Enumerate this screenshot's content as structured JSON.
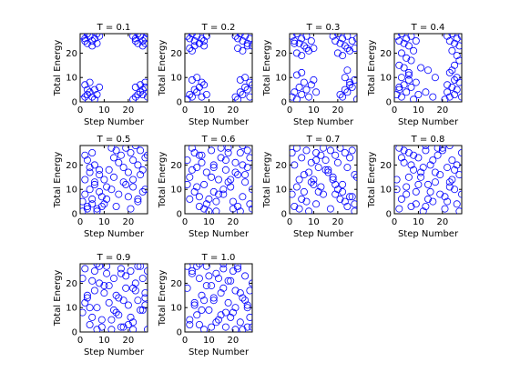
{
  "chart_data": [
    {
      "type": "scatter",
      "title": "T = 0.1",
      "xlabel": "Step Number",
      "ylabel": "Total Energy",
      "xlim": [
        0,
        28
      ],
      "ylim": [
        0,
        28
      ],
      "xticks": [
        "0",
        "10",
        "20"
      ],
      "yticks": [
        "0",
        "10",
        "20"
      ],
      "grid": false,
      "marker": "o",
      "x": [
        1,
        2,
        3,
        4,
        5,
        6,
        7,
        8,
        3,
        5,
        2,
        7,
        22,
        23,
        24,
        25,
        26,
        27,
        28,
        24,
        26,
        23,
        27,
        1,
        2,
        3,
        4,
        5,
        6,
        7,
        8,
        2,
        4,
        6,
        3,
        22,
        23,
        24,
        25,
        26,
        27,
        28,
        23,
        25,
        27,
        26
      ],
      "y": [
        27,
        26,
        28,
        27,
        25,
        26,
        28,
        27,
        24,
        23,
        25,
        24,
        27,
        26,
        28,
        27,
        25,
        26,
        28,
        24,
        23,
        25,
        24,
        1,
        2,
        3,
        4,
        2,
        5,
        3,
        6,
        7,
        8,
        1,
        5,
        1,
        2,
        3,
        4,
        5,
        6,
        2,
        6,
        7,
        8,
        3
      ]
    },
    {
      "type": "scatter",
      "title": "T = 0.2",
      "xlabel": "Step Number",
      "ylabel": "Total Energy",
      "xlim": [
        0,
        28
      ],
      "ylim": [
        0,
        28
      ],
      "xticks": [
        "0",
        "10",
        "20"
      ],
      "yticks": [
        "0",
        "10",
        "20"
      ],
      "grid": false,
      "marker": "o",
      "x": [
        1,
        2,
        3,
        4,
        5,
        6,
        7,
        8,
        9,
        2,
        4,
        6,
        8,
        3,
        21,
        22,
        23,
        24,
        25,
        26,
        27,
        28,
        22,
        24,
        26,
        1,
        2,
        3,
        4,
        5,
        6,
        7,
        8,
        9,
        3,
        5,
        7,
        21,
        22,
        23,
        24,
        25,
        26,
        27,
        28,
        23,
        25,
        27
      ],
      "y": [
        27,
        26,
        28,
        25,
        27,
        24,
        26,
        23,
        27,
        22,
        23,
        24,
        25,
        21,
        27,
        26,
        28,
        25,
        27,
        24,
        26,
        23,
        22,
        21,
        23,
        1,
        3,
        2,
        5,
        4,
        6,
        8,
        7,
        3,
        9,
        10,
        2,
        2,
        1,
        4,
        3,
        6,
        5,
        8,
        7,
        9,
        10,
        2
      ]
    },
    {
      "type": "scatter",
      "title": "T = 0.3",
      "xlabel": "Step Number",
      "ylabel": "Total Energy",
      "xlim": [
        0,
        28
      ],
      "ylim": [
        0,
        28
      ],
      "xticks": [
        "0",
        "10",
        "20"
      ],
      "yticks": [
        "0",
        "10",
        "20"
      ],
      "grid": false,
      "marker": "o",
      "x": [
        1,
        2,
        3,
        4,
        5,
        6,
        7,
        8,
        9,
        10,
        3,
        5,
        7,
        2,
        18,
        19,
        20,
        21,
        22,
        23,
        24,
        25,
        26,
        27,
        28,
        20,
        22,
        24,
        1,
        2,
        3,
        4,
        5,
        6,
        7,
        8,
        9,
        10,
        11,
        3,
        5,
        21,
        22,
        23,
        24,
        25,
        26,
        27,
        28,
        23,
        25,
        24
      ],
      "y": [
        27,
        25,
        28,
        24,
        26,
        23,
        27,
        21,
        25,
        22,
        20,
        19,
        22,
        24,
        27,
        25,
        28,
        24,
        26,
        23,
        27,
        21,
        25,
        22,
        26,
        20,
        19,
        22,
        2,
        4,
        1,
        6,
        3,
        8,
        5,
        2,
        7,
        9,
        4,
        11,
        12,
        3,
        2,
        5,
        4,
        7,
        6,
        9,
        1,
        10,
        8,
        13
      ]
    },
    {
      "type": "scatter",
      "title": "T = 0.4",
      "xlabel": "Step Number",
      "ylabel": "Total Energy",
      "xlim": [
        0,
        28
      ],
      "ylim": [
        0,
        28
      ],
      "xticks": [
        "0",
        "10",
        "20"
      ],
      "yticks": [
        "0",
        "10",
        "20"
      ],
      "grid": false,
      "marker": "o",
      "x": [
        1,
        2,
        3,
        4,
        5,
        6,
        7,
        8,
        9,
        3,
        5,
        7,
        2,
        4,
        6,
        1,
        2,
        3,
        4,
        5,
        6,
        7,
        8,
        9,
        10,
        3,
        6,
        2,
        22,
        23,
        24,
        25,
        26,
        27,
        28,
        24,
        26,
        27,
        25,
        23,
        26,
        24,
        21,
        22,
        23,
        24,
        25,
        26,
        27,
        28,
        22,
        25,
        13,
        17,
        14,
        11,
        16
      ],
      "y": [
        27,
        25,
        28,
        24,
        26,
        23,
        27,
        21,
        25,
        20,
        18,
        17,
        15,
        14,
        12,
        3,
        5,
        2,
        7,
        4,
        9,
        6,
        1,
        8,
        3,
        10,
        11,
        6,
        27,
        25,
        28,
        24,
        26,
        23,
        27,
        21,
        19,
        17,
        15,
        12,
        10,
        13,
        1,
        4,
        2,
        6,
        3,
        5,
        8,
        2,
        7,
        9,
        4,
        10,
        13,
        14,
        2
      ]
    },
    {
      "type": "scatter",
      "title": "T = 0.5",
      "xlabel": "Step Number",
      "ylabel": "Total Energy",
      "xlim": [
        0,
        28
      ],
      "ylim": [
        0,
        28
      ],
      "xticks": [
        "0",
        "10",
        "20"
      ],
      "yticks": [
        "0",
        "10",
        "20"
      ],
      "grid": false,
      "marker": "o",
      "x": [
        1,
        2,
        3,
        4,
        5,
        6,
        7,
        8,
        9,
        10,
        11,
        2,
        4,
        6,
        8,
        3,
        5,
        12,
        14,
        13,
        15,
        17,
        19,
        21,
        23,
        25,
        27,
        16,
        18,
        20,
        22,
        24,
        26,
        28,
        14,
        18,
        22,
        26,
        20,
        24,
        1,
        3,
        5,
        7,
        9,
        11,
        2,
        4,
        6,
        13,
        16,
        19,
        22,
        25,
        27,
        15,
        21,
        24,
        8,
        10
      ],
      "y": [
        5,
        8,
        3,
        10,
        6,
        12,
        2,
        9,
        7,
        4,
        11,
        14,
        17,
        20,
        16,
        22,
        25,
        18,
        23,
        27,
        26,
        24,
        27,
        25,
        28,
        26,
        23,
        21,
        19,
        17,
        22,
        20,
        18,
        24,
        15,
        13,
        11,
        9,
        7,
        5,
        1,
        2,
        4,
        1,
        3,
        6,
        24,
        19,
        13,
        10,
        8,
        12,
        14,
        16,
        10,
        3,
        2,
        6,
        18,
        14
      ]
    },
    {
      "type": "scatter",
      "title": "T = 0.6",
      "xlabel": "Step Number",
      "ylabel": "Total Energy",
      "xlim": [
        0,
        28
      ],
      "ylim": [
        0,
        28
      ],
      "xticks": [
        "0",
        "10",
        "20"
      ],
      "yticks": [
        "0",
        "10",
        "20"
      ],
      "grid": false,
      "marker": "o",
      "x": [
        1,
        2,
        3,
        4,
        5,
        6,
        7,
        8,
        9,
        10,
        11,
        12,
        13,
        14,
        15,
        16,
        17,
        18,
        19,
        20,
        21,
        22,
        23,
        24,
        25,
        26,
        27,
        28,
        2,
        5,
        8,
        11,
        14,
        17,
        20,
        23,
        26,
        3,
        6,
        9,
        12,
        15,
        18,
        21,
        24,
        27,
        1,
        4,
        7,
        10,
        13,
        16,
        19,
        22,
        25,
        28,
        6,
        12,
        18,
        24
      ],
      "y": [
        22,
        15,
        27,
        9,
        19,
        3,
        24,
        12,
        17,
        6,
        26,
        20,
        1,
        14,
        23,
        8,
        18,
        27,
        11,
        2,
        21,
        16,
        25,
        7,
        13,
        19,
        4,
        10,
        6,
        11,
        2,
        15,
        8,
        22,
        5,
        1,
        26,
        18,
        24,
        4,
        9,
        27,
        13,
        17,
        20,
        23,
        12,
        25,
        21,
        1,
        5,
        10,
        14,
        3,
        16,
        2,
        7,
        19,
        25,
        28
      ]
    },
    {
      "type": "scatter",
      "title": "T = 0.7",
      "xlabel": "Step Number",
      "ylabel": "Total Energy",
      "xlim": [
        0,
        28
      ],
      "ylim": [
        0,
        28
      ],
      "xticks": [
        "0",
        "10",
        "20"
      ],
      "yticks": [
        "0",
        "10",
        "20"
      ],
      "grid": false,
      "marker": "o",
      "x": [
        1,
        2,
        3,
        4,
        5,
        6,
        7,
        8,
        9,
        10,
        11,
        12,
        13,
        14,
        15,
        16,
        17,
        18,
        19,
        20,
        21,
        22,
        23,
        24,
        25,
        26,
        27,
        2,
        5,
        8,
        11,
        14,
        17,
        20,
        23,
        26,
        3,
        6,
        9,
        12,
        15,
        18,
        21,
        24,
        27,
        1,
        4,
        7,
        10,
        13,
        16,
        19,
        22,
        25,
        28,
        11,
        19,
        27
      ],
      "y": [
        25,
        20,
        27,
        14,
        23,
        9,
        26,
        17,
        21,
        12,
        25,
        19,
        24,
        27,
        22,
        18,
        26,
        15,
        24,
        21,
        27,
        12,
        25,
        19,
        23,
        26,
        16,
        3,
        6,
        1,
        4,
        8,
        2,
        10,
        5,
        7,
        11,
        16,
        13,
        9,
        18,
        14,
        6,
        3,
        1,
        8,
        2,
        5,
        14,
        11,
        17,
        12,
        9,
        7,
        15,
        22,
        8,
        4
      ]
    },
    {
      "type": "scatter",
      "title": "T = 0.8",
      "xlabel": "Step Number",
      "ylabel": "Total Energy",
      "xlim": [
        0,
        28
      ],
      "ylim": [
        0,
        28
      ],
      "xticks": [
        "0",
        "10",
        "20"
      ],
      "yticks": [
        "0",
        "10",
        "20"
      ],
      "grid": false,
      "marker": "o",
      "x": [
        1,
        2,
        3,
        4,
        5,
        6,
        7,
        8,
        9,
        10,
        11,
        12,
        13,
        14,
        15,
        16,
        17,
        18,
        19,
        20,
        21,
        22,
        23,
        24,
        25,
        26,
        27,
        28,
        2,
        5,
        8,
        11,
        14,
        17,
        20,
        23,
        26,
        3,
        6,
        9,
        12,
        15,
        18,
        21,
        24,
        27,
        1,
        4,
        7,
        10,
        13,
        16,
        19,
        22,
        25,
        28,
        13,
        23
      ],
      "y": [
        14,
        27,
        6,
        21,
        11,
        25,
        3,
        18,
        9,
        23,
        15,
        1,
        26,
        12,
        20,
        5,
        17,
        24,
        8,
        27,
        2,
        19,
        13,
        22,
        10,
        4,
        16,
        25,
        2,
        8,
        24,
        17,
        6,
        13,
        26,
        11,
        20,
        23,
        15,
        4,
        19,
        9,
        27,
        7,
        14,
        1,
        10,
        26,
        20,
        12,
        3,
        22,
        16,
        5,
        18,
        8,
        28,
        28
      ]
    },
    {
      "type": "scatter",
      "title": "T = 0.9",
      "xlabel": "Step Number",
      "ylabel": "Total Energy",
      "xlim": [
        0,
        28
      ],
      "ylim": [
        0,
        28
      ],
      "xticks": [
        "0",
        "10",
        "20"
      ],
      "yticks": [
        "0",
        "10",
        "20"
      ],
      "grid": false,
      "marker": "o",
      "x": [
        1,
        2,
        3,
        4,
        5,
        6,
        7,
        8,
        9,
        10,
        11,
        12,
        13,
        14,
        15,
        16,
        17,
        18,
        19,
        20,
        21,
        22,
        23,
        24,
        25,
        26,
        27,
        28,
        2,
        5,
        8,
        11,
        14,
        17,
        20,
        23,
        26,
        3,
        6,
        9,
        12,
        15,
        18,
        21,
        24,
        27,
        1,
        4,
        7,
        10,
        13,
        16,
        19,
        22,
        25,
        28,
        7,
        17,
        22,
        27
      ],
      "y": [
        8,
        26,
        14,
        3,
        21,
        17,
        10,
        27,
        5,
        19,
        24,
        12,
        1,
        22,
        15,
        7,
        26,
        2,
        18,
        11,
        25,
        4,
        20,
        13,
        27,
        9,
        16,
        1,
        12,
        6,
        20,
        27,
        9,
        24,
        3,
        17,
        22,
        15,
        25,
        2,
        19,
        8,
        13,
        6,
        27,
        11,
        22,
        10,
        1,
        16,
        5,
        14,
        23,
        18,
        9,
        25,
        28,
        2,
        1,
        14
      ]
    },
    {
      "type": "scatter",
      "title": "T = 1.0",
      "xlabel": "Step Number",
      "ylabel": "Total Energy",
      "xlim": [
        0,
        28
      ],
      "ylim": [
        0,
        28
      ],
      "xticks": [
        "0",
        "10",
        "20"
      ],
      "yticks": [
        "0",
        "10",
        "20"
      ],
      "grid": false,
      "marker": "o",
      "x": [
        1,
        2,
        3,
        4,
        5,
        6,
        7,
        8,
        9,
        10,
        11,
        12,
        13,
        14,
        15,
        16,
        17,
        18,
        19,
        20,
        21,
        22,
        23,
        24,
        25,
        26,
        27,
        28,
        2,
        5,
        8,
        11,
        14,
        17,
        20,
        23,
        26,
        3,
        6,
        9,
        12,
        15,
        18,
        21,
        24,
        27,
        1,
        4,
        7,
        10,
        13,
        16,
        19,
        22,
        25,
        28,
        6,
        16,
        21,
        26
      ],
      "y": [
        18,
        3,
        25,
        11,
        7,
        22,
        15,
        1,
        27,
        9,
        19,
        13,
        24,
        5,
        16,
        26,
        2,
        12,
        21,
        8,
        17,
        27,
        4,
        14,
        23,
        10,
        6,
        20,
        5,
        27,
        13,
        2,
        22,
        8,
        25,
        16,
        11,
        24,
        3,
        19,
        14,
        7,
        21,
        10,
        1,
        17,
        27,
        12,
        9,
        23,
        4,
        18,
        6,
        26,
        13,
        2,
        28,
        28,
        1,
        2
      ]
    }
  ],
  "colors": {
    "marker": "#0000ff",
    "axes": "#000000",
    "background": "#ffffff"
  }
}
